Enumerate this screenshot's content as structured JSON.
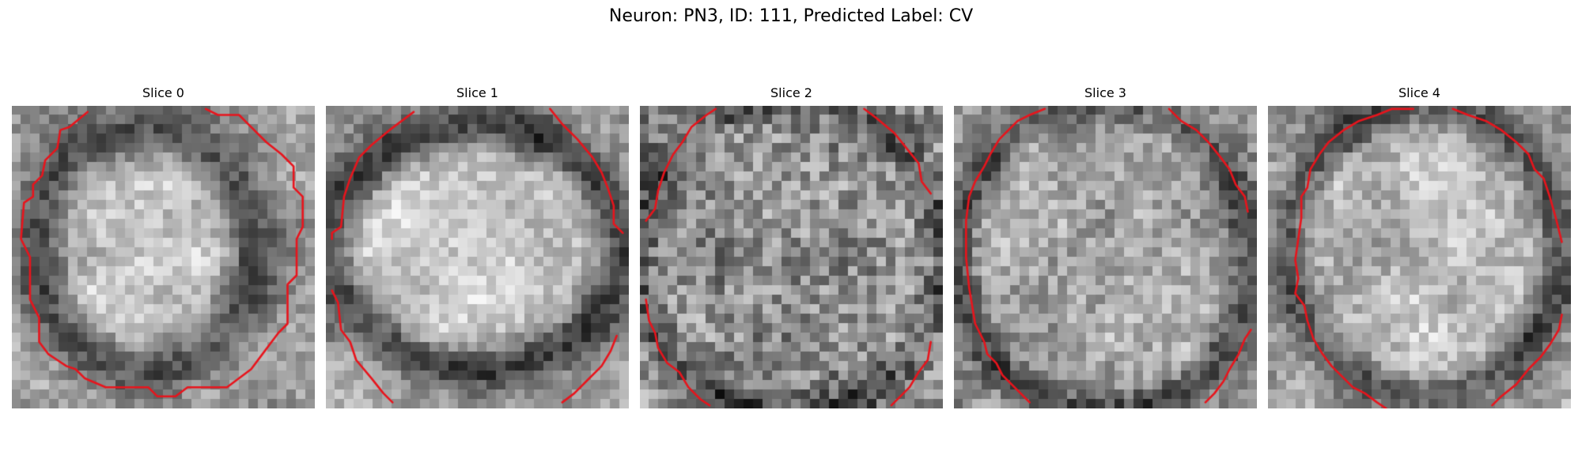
{
  "figure": {
    "title": "Neuron: PN3, ID: 111, Predicted Label: CV"
  },
  "panels": [
    {
      "title": "Slice 0"
    },
    {
      "title": "Slice 1"
    },
    {
      "title": "Slice 2"
    },
    {
      "title": "Slice 3"
    },
    {
      "title": "Slice 4"
    }
  ],
  "colors": {
    "contour": "#e8141c",
    "background": "#ffffff"
  }
}
